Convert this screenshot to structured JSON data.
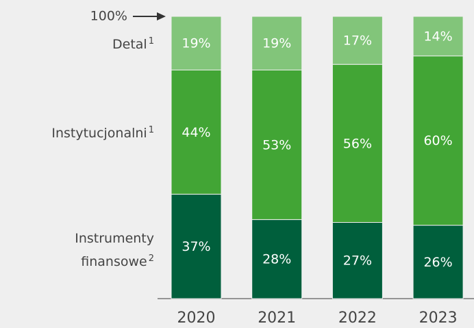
{
  "chart_data": {
    "type": "stacked_bar",
    "categories": [
      "2020",
      "2021",
      "2022",
      "2023"
    ],
    "series": [
      {
        "name": "Instrumenty finansowe",
        "note": "2",
        "color": "#005f3c",
        "values": [
          37,
          28,
          27,
          26
        ],
        "value_labels": [
          "37%",
          "28%",
          "27%",
          "26%"
        ]
      },
      {
        "name": "Instytucjonalni",
        "note": "1",
        "color": "#42a535",
        "values": [
          44,
          53,
          56,
          60
        ],
        "value_labels": [
          "44%",
          "53%",
          "56%",
          "60%"
        ]
      },
      {
        "name": "Detal",
        "note": "1",
        "color": "#82c57a",
        "values": [
          19,
          19,
          17,
          14
        ],
        "value_labels": [
          "19%",
          "19%",
          "17%",
          "14%"
        ]
      }
    ],
    "ylim": [
      0,
      100
    ],
    "top_marker": {
      "value": 100,
      "label": "100%"
    }
  }
}
